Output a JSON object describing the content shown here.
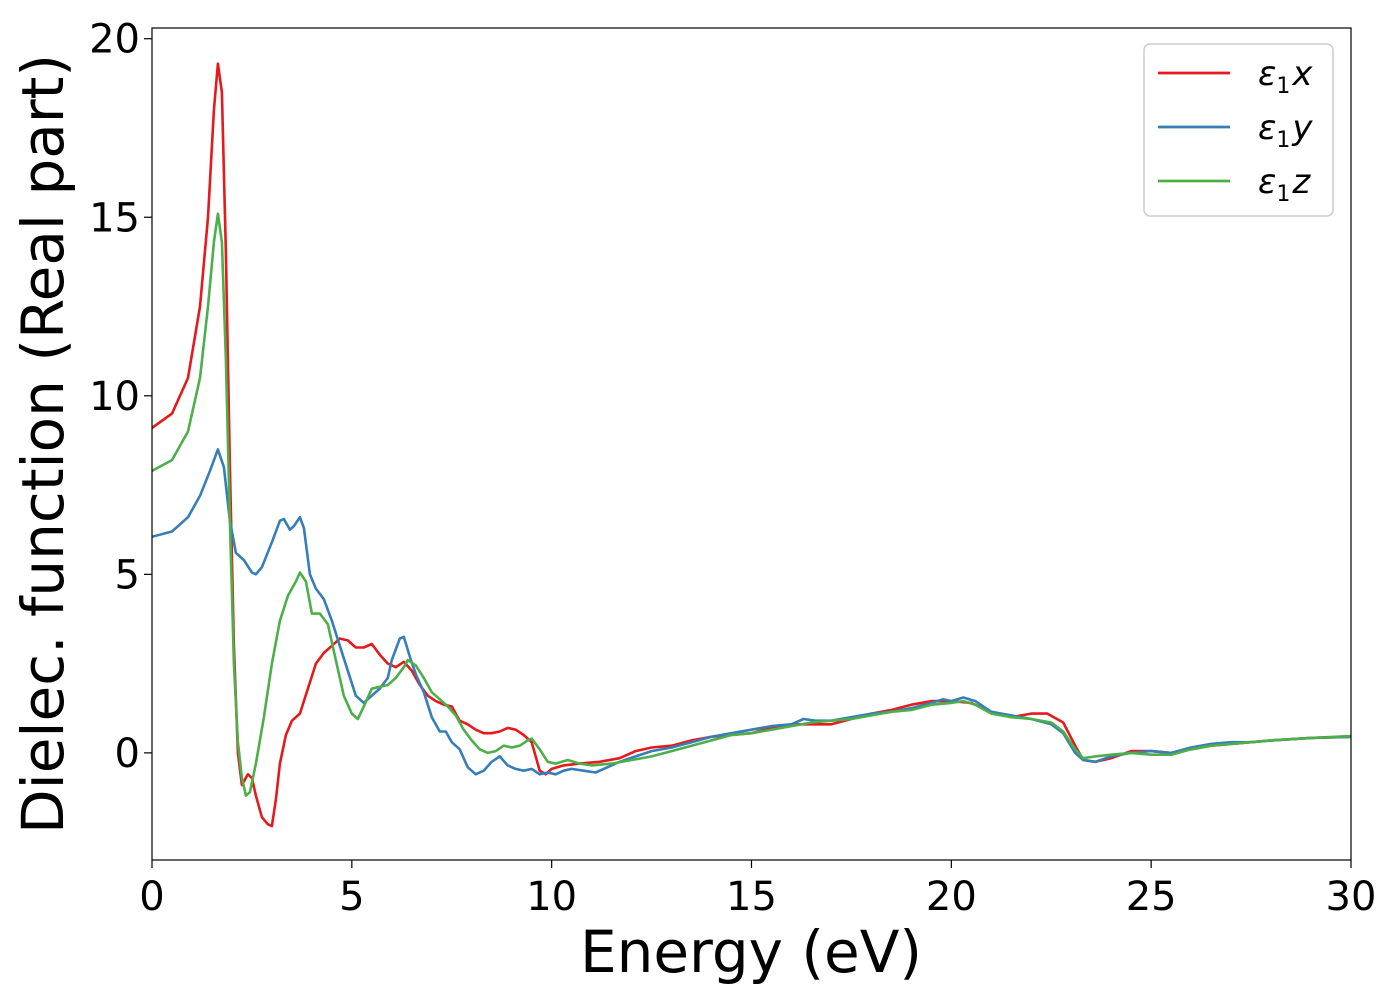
{
  "chart_data": {
    "type": "line",
    "title": "",
    "xlabel": "Energy (eV)",
    "ylabel": "Dielec. function (Real part)",
    "xlim": [
      0,
      30
    ],
    "ylim": [
      -3,
      20.3
    ],
    "xticks": [
      0,
      5,
      10,
      15,
      20,
      25,
      30
    ],
    "yticks": [
      0,
      5,
      10,
      15,
      20
    ],
    "grid": false,
    "legend_position": "top-right",
    "series": [
      {
        "name": "ε1x",
        "legend_base": "ε",
        "legend_sub": "1",
        "legend_var": "x",
        "color": "#e41a1c",
        "points": [
          [
            0,
            9.1
          ],
          [
            0.5,
            9.5
          ],
          [
            0.9,
            10.5
          ],
          [
            1.2,
            12.5
          ],
          [
            1.4,
            15.0
          ],
          [
            1.55,
            18.0
          ],
          [
            1.65,
            19.3
          ],
          [
            1.75,
            18.5
          ],
          [
            1.85,
            14.0
          ],
          [
            1.95,
            8.0
          ],
          [
            2.05,
            3.0
          ],
          [
            2.15,
            0.0
          ],
          [
            2.25,
            -0.9
          ],
          [
            2.4,
            -0.6
          ],
          [
            2.5,
            -0.7
          ],
          [
            2.6,
            -1.2
          ],
          [
            2.75,
            -1.8
          ],
          [
            2.9,
            -2.0
          ],
          [
            3.0,
            -2.05
          ],
          [
            3.1,
            -1.3
          ],
          [
            3.2,
            -0.3
          ],
          [
            3.35,
            0.5
          ],
          [
            3.5,
            0.9
          ],
          [
            3.7,
            1.1
          ],
          [
            3.9,
            1.8
          ],
          [
            4.1,
            2.5
          ],
          [
            4.3,
            2.8
          ],
          [
            4.5,
            3.0
          ],
          [
            4.7,
            3.2
          ],
          [
            4.9,
            3.15
          ],
          [
            5.1,
            2.95
          ],
          [
            5.3,
            2.95
          ],
          [
            5.5,
            3.05
          ],
          [
            5.7,
            2.75
          ],
          [
            5.9,
            2.5
          ],
          [
            6.1,
            2.4
          ],
          [
            6.3,
            2.55
          ],
          [
            6.5,
            2.3
          ],
          [
            6.7,
            1.9
          ],
          [
            6.9,
            1.6
          ],
          [
            7.1,
            1.45
          ],
          [
            7.3,
            1.35
          ],
          [
            7.5,
            1.3
          ],
          [
            7.7,
            0.9
          ],
          [
            7.9,
            0.8
          ],
          [
            8.1,
            0.65
          ],
          [
            8.3,
            0.55
          ],
          [
            8.5,
            0.55
          ],
          [
            8.7,
            0.6
          ],
          [
            8.9,
            0.7
          ],
          [
            9.1,
            0.65
          ],
          [
            9.3,
            0.5
          ],
          [
            9.5,
            0.3
          ],
          [
            9.7,
            -0.5
          ],
          [
            9.85,
            -0.6
          ],
          [
            10.0,
            -0.45
          ],
          [
            10.3,
            -0.35
          ],
          [
            10.7,
            -0.3
          ],
          [
            11.2,
            -0.25
          ],
          [
            11.7,
            -0.15
          ],
          [
            12.1,
            0.05
          ],
          [
            12.5,
            0.15
          ],
          [
            13.0,
            0.2
          ],
          [
            13.5,
            0.35
          ],
          [
            14.0,
            0.45
          ],
          [
            14.5,
            0.5
          ],
          [
            15.0,
            0.55
          ],
          [
            15.5,
            0.7
          ],
          [
            16.0,
            0.8
          ],
          [
            16.5,
            0.8
          ],
          [
            17.0,
            0.8
          ],
          [
            17.5,
            0.95
          ],
          [
            18.0,
            1.1
          ],
          [
            18.5,
            1.2
          ],
          [
            19.0,
            1.35
          ],
          [
            19.5,
            1.45
          ],
          [
            20.0,
            1.45
          ],
          [
            20.5,
            1.4
          ],
          [
            21.0,
            1.15
          ],
          [
            21.5,
            1.0
          ],
          [
            22.0,
            1.1
          ],
          [
            22.4,
            1.1
          ],
          [
            22.8,
            0.85
          ],
          [
            23.1,
            0.2
          ],
          [
            23.3,
            -0.2
          ],
          [
            23.6,
            -0.25
          ],
          [
            24.0,
            -0.15
          ],
          [
            24.5,
            0.05
          ],
          [
            25.0,
            0.05
          ],
          [
            25.5,
            0.0
          ],
          [
            26.0,
            0.1
          ],
          [
            26.5,
            0.2
          ],
          [
            27.0,
            0.25
          ],
          [
            27.5,
            0.3
          ],
          [
            28.0,
            0.35
          ],
          [
            29.0,
            0.42
          ],
          [
            30.0,
            0.45
          ]
        ]
      },
      {
        "name": "ε1y",
        "legend_base": "ε",
        "legend_sub": "1",
        "legend_var": "y",
        "color": "#377eb8",
        "points": [
          [
            0,
            6.05
          ],
          [
            0.5,
            6.2
          ],
          [
            0.9,
            6.6
          ],
          [
            1.2,
            7.2
          ],
          [
            1.45,
            7.9
          ],
          [
            1.65,
            8.5
          ],
          [
            1.8,
            8.0
          ],
          [
            1.95,
            6.5
          ],
          [
            2.1,
            5.6
          ],
          [
            2.3,
            5.4
          ],
          [
            2.5,
            5.05
          ],
          [
            2.6,
            5.0
          ],
          [
            2.75,
            5.2
          ],
          [
            3.0,
            5.9
          ],
          [
            3.2,
            6.5
          ],
          [
            3.3,
            6.55
          ],
          [
            3.45,
            6.25
          ],
          [
            3.55,
            6.35
          ],
          [
            3.7,
            6.6
          ],
          [
            3.8,
            6.3
          ],
          [
            3.95,
            5.0
          ],
          [
            4.1,
            4.6
          ],
          [
            4.3,
            4.3
          ],
          [
            4.5,
            3.7
          ],
          [
            4.7,
            3.0
          ],
          [
            4.9,
            2.3
          ],
          [
            5.1,
            1.6
          ],
          [
            5.3,
            1.4
          ],
          [
            5.5,
            1.6
          ],
          [
            5.7,
            1.8
          ],
          [
            5.9,
            2.1
          ],
          [
            6.0,
            2.6
          ],
          [
            6.2,
            3.2
          ],
          [
            6.3,
            3.25
          ],
          [
            6.45,
            2.7
          ],
          [
            6.6,
            2.2
          ],
          [
            6.8,
            1.7
          ],
          [
            7.0,
            1.0
          ],
          [
            7.2,
            0.6
          ],
          [
            7.35,
            0.6
          ],
          [
            7.5,
            0.3
          ],
          [
            7.7,
            0.1
          ],
          [
            7.9,
            -0.4
          ],
          [
            8.1,
            -0.6
          ],
          [
            8.3,
            -0.5
          ],
          [
            8.5,
            -0.25
          ],
          [
            8.7,
            -0.1
          ],
          [
            8.9,
            -0.35
          ],
          [
            9.1,
            -0.45
          ],
          [
            9.3,
            -0.5
          ],
          [
            9.5,
            -0.45
          ],
          [
            9.7,
            -0.6
          ],
          [
            9.9,
            -0.55
          ],
          [
            10.1,
            -0.6
          ],
          [
            10.3,
            -0.5
          ],
          [
            10.5,
            -0.45
          ],
          [
            10.8,
            -0.5
          ],
          [
            11.1,
            -0.55
          ],
          [
            11.4,
            -0.4
          ],
          [
            11.7,
            -0.25
          ],
          [
            12.1,
            -0.1
          ],
          [
            12.5,
            0.05
          ],
          [
            13.0,
            0.15
          ],
          [
            13.5,
            0.3
          ],
          [
            14.0,
            0.45
          ],
          [
            14.5,
            0.55
          ],
          [
            15.0,
            0.65
          ],
          [
            15.5,
            0.75
          ],
          [
            16.0,
            0.8
          ],
          [
            16.3,
            0.95
          ],
          [
            16.6,
            0.9
          ],
          [
            17.0,
            0.9
          ],
          [
            17.5,
            1.0
          ],
          [
            18.0,
            1.1
          ],
          [
            18.5,
            1.15
          ],
          [
            19.0,
            1.25
          ],
          [
            19.5,
            1.4
          ],
          [
            19.8,
            1.5
          ],
          [
            20.0,
            1.45
          ],
          [
            20.3,
            1.55
          ],
          [
            20.6,
            1.45
          ],
          [
            21.0,
            1.15
          ],
          [
            21.5,
            1.05
          ],
          [
            22.0,
            0.95
          ],
          [
            22.5,
            0.8
          ],
          [
            22.8,
            0.55
          ],
          [
            23.1,
            0.0
          ],
          [
            23.3,
            -0.2
          ],
          [
            23.6,
            -0.25
          ],
          [
            24.0,
            -0.1
          ],
          [
            24.5,
            0.0
          ],
          [
            25.0,
            0.05
          ],
          [
            25.5,
            0.0
          ],
          [
            26.0,
            0.15
          ],
          [
            26.5,
            0.25
          ],
          [
            27.0,
            0.3
          ],
          [
            27.5,
            0.3
          ],
          [
            28.0,
            0.35
          ],
          [
            29.0,
            0.42
          ],
          [
            30.0,
            0.45
          ]
        ]
      },
      {
        "name": "ε1z",
        "legend_base": "ε",
        "legend_sub": "1",
        "legend_var": "z",
        "color": "#4daf4a",
        "points": [
          [
            0,
            7.9
          ],
          [
            0.5,
            8.2
          ],
          [
            0.9,
            9.0
          ],
          [
            1.2,
            10.5
          ],
          [
            1.4,
            12.5
          ],
          [
            1.55,
            14.3
          ],
          [
            1.65,
            15.1
          ],
          [
            1.75,
            14.3
          ],
          [
            1.85,
            11.0
          ],
          [
            1.95,
            6.5
          ],
          [
            2.05,
            2.5
          ],
          [
            2.15,
            0.3
          ],
          [
            2.25,
            -0.7
          ],
          [
            2.35,
            -1.2
          ],
          [
            2.45,
            -1.1
          ],
          [
            2.6,
            -0.3
          ],
          [
            2.8,
            1.0
          ],
          [
            3.0,
            2.5
          ],
          [
            3.2,
            3.7
          ],
          [
            3.4,
            4.4
          ],
          [
            3.6,
            4.8
          ],
          [
            3.7,
            5.05
          ],
          [
            3.85,
            4.8
          ],
          [
            4.0,
            3.9
          ],
          [
            4.2,
            3.9
          ],
          [
            4.4,
            3.6
          ],
          [
            4.6,
            2.6
          ],
          [
            4.8,
            1.6
          ],
          [
            5.0,
            1.1
          ],
          [
            5.15,
            0.95
          ],
          [
            5.3,
            1.3
          ],
          [
            5.5,
            1.8
          ],
          [
            5.7,
            1.85
          ],
          [
            5.9,
            1.9
          ],
          [
            6.1,
            2.1
          ],
          [
            6.3,
            2.4
          ],
          [
            6.4,
            2.6
          ],
          [
            6.6,
            2.45
          ],
          [
            6.8,
            2.1
          ],
          [
            7.0,
            1.7
          ],
          [
            7.2,
            1.5
          ],
          [
            7.4,
            1.3
          ],
          [
            7.6,
            1.05
          ],
          [
            7.8,
            0.65
          ],
          [
            8.0,
            0.35
          ],
          [
            8.2,
            0.1
          ],
          [
            8.4,
            0.0
          ],
          [
            8.6,
            0.05
          ],
          [
            8.8,
            0.2
          ],
          [
            9.0,
            0.15
          ],
          [
            9.2,
            0.2
          ],
          [
            9.4,
            0.35
          ],
          [
            9.5,
            0.4
          ],
          [
            9.7,
            0.1
          ],
          [
            9.9,
            -0.25
          ],
          [
            10.1,
            -0.3
          ],
          [
            10.4,
            -0.2
          ],
          [
            10.7,
            -0.3
          ],
          [
            11.0,
            -0.35
          ],
          [
            11.5,
            -0.3
          ],
          [
            12.0,
            -0.2
          ],
          [
            12.5,
            -0.1
          ],
          [
            13.0,
            0.05
          ],
          [
            13.5,
            0.2
          ],
          [
            14.0,
            0.35
          ],
          [
            14.5,
            0.5
          ],
          [
            15.0,
            0.55
          ],
          [
            15.5,
            0.65
          ],
          [
            16.0,
            0.75
          ],
          [
            16.5,
            0.85
          ],
          [
            17.0,
            0.9
          ],
          [
            17.5,
            0.95
          ],
          [
            18.0,
            1.05
          ],
          [
            18.5,
            1.15
          ],
          [
            19.0,
            1.2
          ],
          [
            19.5,
            1.35
          ],
          [
            20.0,
            1.4
          ],
          [
            20.3,
            1.45
          ],
          [
            20.6,
            1.35
          ],
          [
            21.0,
            1.1
          ],
          [
            21.5,
            1.0
          ],
          [
            22.0,
            0.95
          ],
          [
            22.5,
            0.85
          ],
          [
            22.8,
            0.6
          ],
          [
            23.1,
            0.1
          ],
          [
            23.3,
            -0.15
          ],
          [
            23.6,
            -0.1
          ],
          [
            24.0,
            -0.05
          ],
          [
            24.5,
            0.0
          ],
          [
            25.0,
            -0.05
          ],
          [
            25.5,
            -0.05
          ],
          [
            26.0,
            0.1
          ],
          [
            26.5,
            0.2
          ],
          [
            27.0,
            0.25
          ],
          [
            27.5,
            0.3
          ],
          [
            28.0,
            0.35
          ],
          [
            29.0,
            0.42
          ],
          [
            30.0,
            0.47
          ]
        ]
      }
    ]
  }
}
